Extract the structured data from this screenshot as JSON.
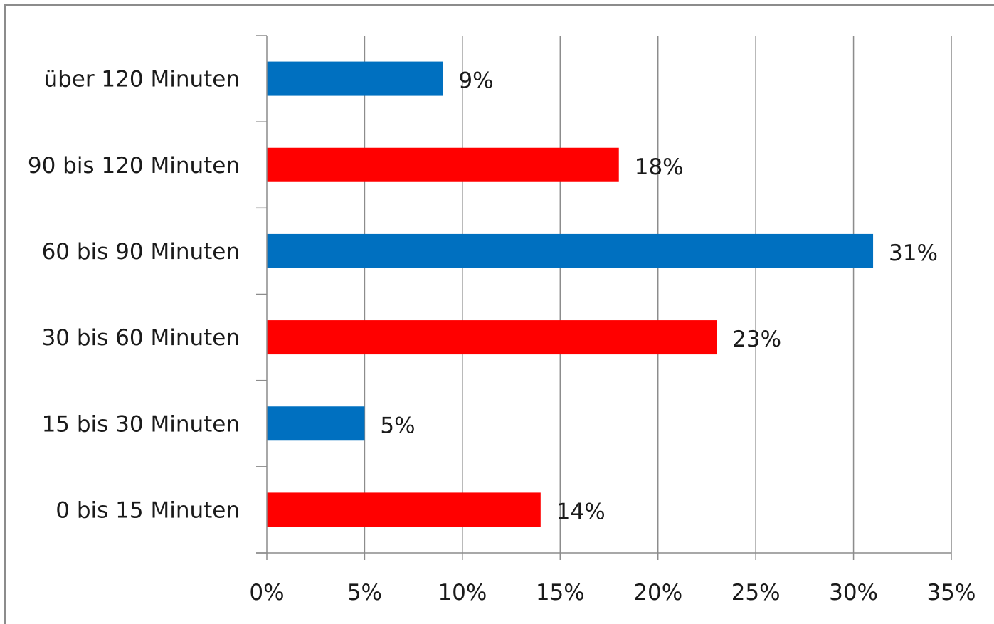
{
  "chart_data": {
    "type": "bar",
    "orientation": "horizontal",
    "categories": [
      "0 bis 15 Minuten",
      "15 bis 30 Minuten",
      "30 bis 60 Minuten",
      "60 bis 90 Minuten",
      "90 bis 120 Minuten",
      "über 120 Minuten"
    ],
    "values": [
      14,
      5,
      23,
      31,
      18,
      9
    ],
    "data_labels": [
      "14%",
      "5%",
      "23%",
      "31%",
      "18%",
      "9%"
    ],
    "bar_colors": [
      "#ff0000",
      "#0070c0",
      "#ff0000",
      "#0070c0",
      "#ff0000",
      "#0070c0"
    ],
    "x_ticks": [
      0,
      5,
      10,
      15,
      20,
      25,
      30,
      35
    ],
    "x_tick_labels": [
      "0%",
      "5%",
      "10%",
      "15%",
      "20%",
      "25%",
      "30%",
      "35%"
    ],
    "xlim": [
      0,
      35
    ],
    "title": "",
    "xlabel": "",
    "ylabel": "",
    "grid": "vertical",
    "legend": "none"
  },
  "colors": {
    "series_red": "#ff0000",
    "series_blue": "#0070c0",
    "gridline": "#8c8c8c",
    "axis": "#8c8c8c",
    "frame": "#8c8c8c"
  }
}
